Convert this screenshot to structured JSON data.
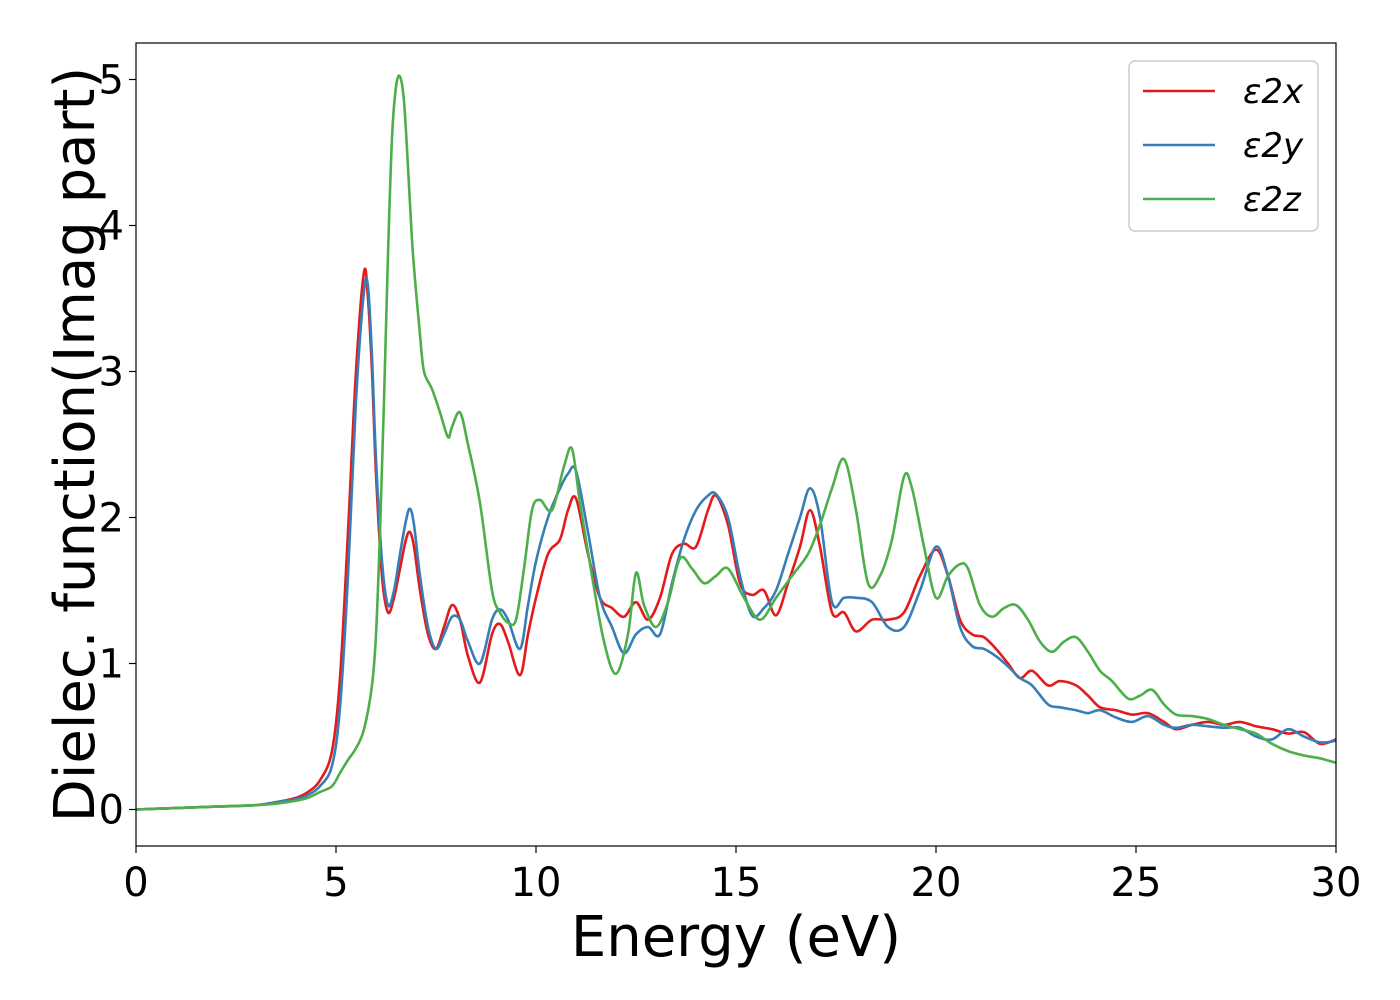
{
  "chart_data": {
    "type": "line",
    "title": "",
    "xlabel": "Energy (eV)",
    "ylabel": "Dielec. function(Imag part)",
    "xlim": [
      0,
      30
    ],
    "ylim": [
      -0.25,
      5.25
    ],
    "xticks": [
      0,
      5,
      10,
      15,
      20,
      25,
      30
    ],
    "yticks": [
      0,
      1,
      2,
      3,
      4,
      5
    ],
    "grid": false,
    "legend_position": "top-right",
    "series": [
      {
        "name": "ε2x",
        "color": "#e41a1c",
        "x": [
          0,
          1,
          2,
          3,
          3.5,
          4,
          4.3,
          4.6,
          4.9,
          5.1,
          5.3,
          5.5,
          5.7,
          5.8,
          5.9,
          6.0,
          6.15,
          6.3,
          6.45,
          6.6,
          6.75,
          6.85,
          6.95,
          7.1,
          7.3,
          7.5,
          7.7,
          7.9,
          8.1,
          8.3,
          8.6,
          8.9,
          9.1,
          9.3,
          9.6,
          9.8,
          10.0,
          10.3,
          10.6,
          10.8,
          11.0,
          11.3,
          11.6,
          11.9,
          12.2,
          12.5,
          12.8,
          13.1,
          13.4,
          13.7,
          14.0,
          14.3,
          14.5,
          14.8,
          15.1,
          15.4,
          15.7,
          16.0,
          16.3,
          16.6,
          16.85,
          17.1,
          17.4,
          17.7,
          18.0,
          18.4,
          18.8,
          19.2,
          19.6,
          20.0,
          20.3,
          20.6,
          20.9,
          21.2,
          21.5,
          21.8,
          22.1,
          22.4,
          22.8,
          23.1,
          23.5,
          23.8,
          24.1,
          24.5,
          24.9,
          25.3,
          25.7,
          26.0,
          26.4,
          26.8,
          27.2,
          27.6,
          28.0,
          28.4,
          28.8,
          29.2,
          29.6,
          30.0
        ],
        "y": [
          0.0,
          0.01,
          0.02,
          0.03,
          0.05,
          0.08,
          0.12,
          0.2,
          0.4,
          0.9,
          1.9,
          3.0,
          3.68,
          3.5,
          3.0,
          2.3,
          1.6,
          1.35,
          1.45,
          1.65,
          1.85,
          1.9,
          1.8,
          1.5,
          1.2,
          1.1,
          1.25,
          1.4,
          1.3,
          1.05,
          0.87,
          1.2,
          1.27,
          1.15,
          0.92,
          1.2,
          1.45,
          1.75,
          1.85,
          2.05,
          2.13,
          1.75,
          1.45,
          1.38,
          1.32,
          1.42,
          1.3,
          1.45,
          1.75,
          1.82,
          1.8,
          2.05,
          2.15,
          1.95,
          1.55,
          1.47,
          1.5,
          1.33,
          1.55,
          1.8,
          2.05,
          1.8,
          1.35,
          1.35,
          1.22,
          1.3,
          1.3,
          1.35,
          1.6,
          1.78,
          1.6,
          1.3,
          1.2,
          1.18,
          1.1,
          1.0,
          0.9,
          0.95,
          0.85,
          0.88,
          0.85,
          0.78,
          0.7,
          0.68,
          0.65,
          0.66,
          0.6,
          0.55,
          0.58,
          0.6,
          0.58,
          0.6,
          0.57,
          0.55,
          0.52,
          0.53,
          0.45,
          0.48
        ]
      },
      {
        "name": "ε2y",
        "color": "#377eb8",
        "x": [
          0,
          1,
          2,
          3,
          3.5,
          4,
          4.3,
          4.6,
          4.9,
          5.1,
          5.3,
          5.5,
          5.7,
          5.8,
          5.9,
          6.0,
          6.15,
          6.3,
          6.45,
          6.6,
          6.75,
          6.85,
          6.95,
          7.1,
          7.3,
          7.5,
          7.7,
          7.9,
          8.1,
          8.3,
          8.6,
          8.9,
          9.1,
          9.3,
          9.6,
          9.8,
          10.0,
          10.3,
          10.6,
          10.8,
          11.0,
          11.3,
          11.6,
          11.9,
          12.2,
          12.5,
          12.8,
          13.1,
          13.4,
          13.7,
          14.0,
          14.3,
          14.5,
          14.8,
          15.1,
          15.4,
          15.7,
          16.0,
          16.3,
          16.6,
          16.85,
          17.1,
          17.4,
          17.7,
          18.0,
          18.4,
          18.8,
          19.2,
          19.6,
          20.0,
          20.3,
          20.6,
          20.9,
          21.2,
          21.5,
          21.8,
          22.1,
          22.4,
          22.8,
          23.1,
          23.5,
          23.8,
          24.1,
          24.5,
          24.9,
          25.3,
          25.7,
          26.0,
          26.4,
          26.8,
          27.2,
          27.6,
          28.0,
          28.4,
          28.8,
          29.2,
          29.6,
          30.0
        ],
        "y": [
          0.0,
          0.01,
          0.02,
          0.03,
          0.05,
          0.07,
          0.1,
          0.16,
          0.3,
          0.7,
          1.6,
          2.8,
          3.55,
          3.58,
          3.1,
          2.4,
          1.7,
          1.4,
          1.5,
          1.75,
          1.98,
          2.06,
          1.95,
          1.6,
          1.25,
          1.1,
          1.2,
          1.32,
          1.3,
          1.15,
          1.0,
          1.3,
          1.37,
          1.3,
          1.1,
          1.4,
          1.7,
          2.0,
          2.2,
          2.3,
          2.32,
          1.9,
          1.45,
          1.25,
          1.07,
          1.2,
          1.25,
          1.2,
          1.55,
          1.85,
          2.05,
          2.15,
          2.16,
          2.0,
          1.6,
          1.33,
          1.38,
          1.5,
          1.75,
          2.0,
          2.2,
          2.0,
          1.42,
          1.45,
          1.45,
          1.42,
          1.25,
          1.25,
          1.5,
          1.8,
          1.6,
          1.25,
          1.12,
          1.1,
          1.05,
          0.98,
          0.9,
          0.85,
          0.72,
          0.7,
          0.68,
          0.66,
          0.68,
          0.63,
          0.6,
          0.64,
          0.58,
          0.56,
          0.58,
          0.57,
          0.56,
          0.56,
          0.5,
          0.48,
          0.55,
          0.5,
          0.46,
          0.47
        ]
      },
      {
        "name": "ε2z",
        "color": "#4daf4a",
        "x": [
          0,
          1,
          2,
          3,
          3.5,
          4,
          4.3,
          4.6,
          4.9,
          5.1,
          5.3,
          5.5,
          5.7,
          5.9,
          6.0,
          6.1,
          6.2,
          6.3,
          6.4,
          6.5,
          6.6,
          6.7,
          6.8,
          6.9,
          7.0,
          7.1,
          7.2,
          7.4,
          7.6,
          7.8,
          7.9,
          8.1,
          8.3,
          8.6,
          8.9,
          9.1,
          9.3,
          9.5,
          9.7,
          9.9,
          10.1,
          10.4,
          10.7,
          10.9,
          11.1,
          11.4,
          11.7,
          12.0,
          12.3,
          12.5,
          12.7,
          13.0,
          13.3,
          13.6,
          13.9,
          14.2,
          14.5,
          14.8,
          15.2,
          15.6,
          16.0,
          16.4,
          16.8,
          17.1,
          17.4,
          17.7,
          18.0,
          18.3,
          18.6,
          18.9,
          19.2,
          19.4,
          19.7,
          20.0,
          20.3,
          20.6,
          20.8,
          21.1,
          21.4,
          21.7,
          22.0,
          22.3,
          22.6,
          22.9,
          23.2,
          23.5,
          23.8,
          24.1,
          24.4,
          24.8,
          25.1,
          25.4,
          25.7,
          26.0,
          26.4,
          26.8,
          27.2,
          27.6,
          28.0,
          28.4,
          28.8,
          29.2,
          29.6,
          30.0
        ],
        "y": [
          0.0,
          0.01,
          0.02,
          0.03,
          0.04,
          0.06,
          0.08,
          0.12,
          0.16,
          0.25,
          0.34,
          0.42,
          0.55,
          0.85,
          1.2,
          1.9,
          2.8,
          3.8,
          4.6,
          4.95,
          5.02,
          4.85,
          4.4,
          3.9,
          3.55,
          3.25,
          3.0,
          2.88,
          2.72,
          2.55,
          2.62,
          2.72,
          2.5,
          2.1,
          1.5,
          1.35,
          1.28,
          1.3,
          1.65,
          2.05,
          2.12,
          2.05,
          2.35,
          2.47,
          2.1,
          1.6,
          1.15,
          0.93,
          1.2,
          1.62,
          1.4,
          1.25,
          1.42,
          1.72,
          1.65,
          1.55,
          1.6,
          1.65,
          1.45,
          1.3,
          1.45,
          1.6,
          1.75,
          1.95,
          2.2,
          2.4,
          2.05,
          1.55,
          1.6,
          1.85,
          2.28,
          2.2,
          1.8,
          1.45,
          1.6,
          1.68,
          1.65,
          1.4,
          1.32,
          1.38,
          1.4,
          1.3,
          1.15,
          1.08,
          1.15,
          1.18,
          1.08,
          0.95,
          0.88,
          0.76,
          0.78,
          0.82,
          0.72,
          0.65,
          0.64,
          0.62,
          0.58,
          0.55,
          0.52,
          0.45,
          0.4,
          0.37,
          0.35,
          0.32
        ]
      }
    ]
  }
}
